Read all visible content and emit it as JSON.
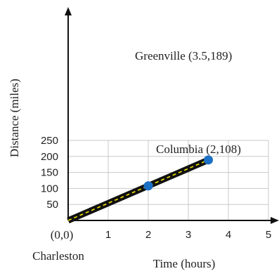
{
  "chart_data": {
    "type": "line",
    "xlabel": "Time (hours)",
    "ylabel": "Distance (miles)",
    "xlim": [
      0,
      5
    ],
    "ylim": [
      0,
      250
    ],
    "x_ticks": [
      1,
      2,
      3,
      4,
      5
    ],
    "y_ticks": [
      50,
      100,
      150,
      200,
      250
    ],
    "grid": true,
    "series": [
      {
        "x": [
          0,
          2,
          3.5
        ],
        "y": [
          0,
          108,
          189
        ]
      }
    ],
    "points": [
      {
        "x": 2,
        "y": 108,
        "label": "Columbia (2,108)"
      },
      {
        "x": 3.5,
        "y": 189,
        "label": "Greenville (3.5,189)"
      }
    ],
    "annotations": {
      "origin_label": "(0,0)",
      "origin_place": "Charleston"
    },
    "colors": {
      "line": "#111111",
      "dash": "#f2e600",
      "point": "#1b6fc4",
      "grid": "#c8c8c8"
    }
  }
}
